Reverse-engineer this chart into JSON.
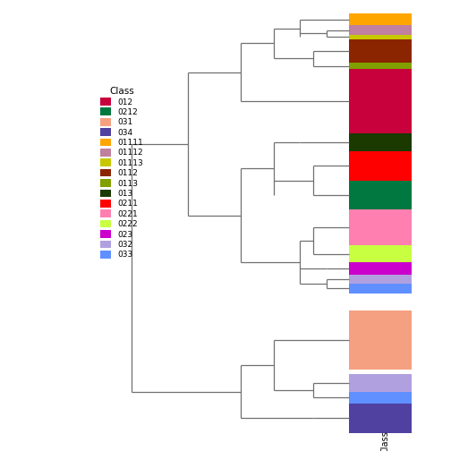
{
  "classes": [
    "012",
    "0212",
    "031",
    "034",
    "01111",
    "01112",
    "01113",
    "0112",
    "0113",
    "013",
    "0211",
    "0221",
    "0222",
    "023",
    "032",
    "033"
  ],
  "colors": {
    "012": "#C8003C",
    "0212": "#007840",
    "031": "#F5A080",
    "034": "#5040A0",
    "01111": "#FFA500",
    "01112": "#C080A0",
    "01113": "#C8C800",
    "0112": "#8B2500",
    "0113": "#80A000",
    "013": "#1A3A00",
    "0211": "#FF0000",
    "0221": "#FF80B0",
    "0222": "#C8FF40",
    "023": "#CC00CC",
    "032": "#B0A0E0",
    "033": "#6090FF"
  },
  "background_color": "#FFFFFF",
  "legend_title": "Class",
  "xlabel": "Class"
}
